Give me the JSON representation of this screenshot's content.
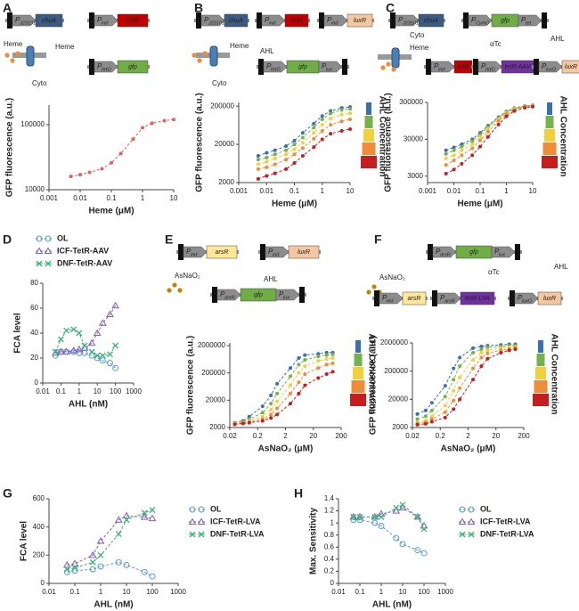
{
  "promoter_symbol": "P",
  "chart_data": [
    {
      "panel": "A",
      "type": "line",
      "x_label": "Heme (μM)",
      "y_label": "GFP fluorescence (a.u.)",
      "xscale": "log",
      "yscale": "log",
      "xlim": [
        0.001,
        10
      ],
      "xticks": [
        0.001,
        0.01,
        0.1,
        1,
        10
      ],
      "ylim": [
        10000,
        200000
      ],
      "yticks": [
        10000,
        100000
      ],
      "x": [
        0.005,
        0.01,
        0.02,
        0.05,
        0.1,
        0.2,
        0.5,
        1,
        2,
        5,
        10
      ],
      "series": [
        {
          "color": "#e0605e",
          "marker": "dot",
          "values": [
            16000,
            17000,
            18500,
            21000,
            26000,
            36000,
            60000,
            90000,
            105000,
            115000,
            120000
          ]
        }
      ],
      "diagram": {
        "parts": [
          {
            "promoter": "J23101",
            "gene": "chuA",
            "color": "#3d5a80"
          },
          {
            "promoter": "ind",
            "gene": "hrtR",
            "color": "#c00000"
          },
          {
            "promoter": "hrtO",
            "gene": "gfp",
            "color": "#70ad47"
          }
        ],
        "labels": [
          "Heme",
          "Cyto",
          "Heme"
        ]
      }
    },
    {
      "panel": "B",
      "type": "line",
      "x_label": "Heme (μM)",
      "y_label": "GFP fluorescence (a.u.)",
      "legend_title": "AHL Concentration",
      "xscale": "log",
      "yscale": "log",
      "xlim": [
        0.001,
        10
      ],
      "xticks": [
        0.001,
        0.01,
        0.1,
        1,
        10
      ],
      "ylim": [
        2000,
        250000
      ],
      "yticks": [
        2000,
        20000,
        200000
      ],
      "x": [
        0.005,
        0.01,
        0.02,
        0.05,
        0.1,
        0.2,
        0.5,
        1,
        2,
        5,
        10
      ],
      "series": [
        {
          "color": "#3a6fb0",
          "marker": "dot",
          "values": [
            10000,
            12000,
            14000,
            18000,
            25000,
            40000,
            70000,
            110000,
            150000,
            180000,
            190000
          ]
        },
        {
          "color": "#74b24c",
          "marker": "dot",
          "values": [
            8000,
            9000,
            11000,
            14000,
            20000,
            30000,
            55000,
            90000,
            130000,
            160000,
            170000
          ]
        },
        {
          "color": "#f2d03b",
          "marker": "dot",
          "values": [
            6000,
            7000,
            8500,
            11000,
            15000,
            22000,
            40000,
            65000,
            95000,
            120000,
            130000
          ]
        },
        {
          "color": "#ef8c3a",
          "marker": "dot",
          "values": [
            4500,
            5000,
            6000,
            8000,
            11000,
            16000,
            28000,
            45000,
            65000,
            80000,
            90000
          ]
        },
        {
          "color": "#c41e1e",
          "marker": "dot",
          "values": [
            2500,
            3000,
            3500,
            4500,
            6500,
            10000,
            17000,
            27000,
            38000,
            45000,
            50000
          ]
        }
      ],
      "diagram": {
        "parts": [
          {
            "promoter": "J23101",
            "gene": "chuA",
            "color": "#3d5a80"
          },
          {
            "promoter": "ind",
            "gene": "hrtR",
            "color": "#c00000"
          },
          {
            "promoter": "ind",
            "gene": "luxR",
            "color": "#f4c7a1"
          },
          {
            "promoter": "hrtO",
            "gene": "gfp",
            "color": "#70ad47",
            "end": "lux"
          }
        ],
        "labels": [
          "Heme",
          "Cyto",
          "AHL"
        ]
      }
    },
    {
      "panel": "C",
      "type": "line",
      "x_label": "Heme (μM)",
      "y_label": "GFP fluorescence (a.u.)",
      "legend_title": "AHL Concentration",
      "xscale": "log",
      "yscale": "log",
      "xlim": [
        0.001,
        10
      ],
      "xticks": [
        0.001,
        0.01,
        0.1,
        1,
        10
      ],
      "ylim": [
        2000,
        300000
      ],
      "yticks": [
        3000,
        30000,
        300000
      ],
      "x": [
        0.005,
        0.01,
        0.02,
        0.05,
        0.1,
        0.2,
        0.5,
        1,
        2,
        5,
        10
      ],
      "series": [
        {
          "color": "#3a6fb0",
          "marker": "dot",
          "values": [
            15000,
            18000,
            22000,
            30000,
            45000,
            70000,
            120000,
            170000,
            210000,
            240000,
            250000
          ]
        },
        {
          "color": "#74b24c",
          "marker": "dot",
          "values": [
            12000,
            15000,
            19000,
            27000,
            40000,
            65000,
            115000,
            165000,
            205000,
            235000,
            245000
          ]
        },
        {
          "color": "#f2d03b",
          "marker": "dot",
          "values": [
            9000,
            11000,
            15000,
            22000,
            35000,
            58000,
            105000,
            155000,
            200000,
            230000,
            240000
          ]
        },
        {
          "color": "#ef8c3a",
          "marker": "dot",
          "values": [
            6000,
            8000,
            11000,
            17000,
            28000,
            48000,
            95000,
            145000,
            190000,
            225000,
            235000
          ]
        },
        {
          "color": "#c41e1e",
          "marker": "dot",
          "values": [
            3500,
            4500,
            6500,
            11000,
            19000,
            35000,
            75000,
            125000,
            175000,
            215000,
            230000
          ]
        }
      ],
      "diagram": {
        "parts": [
          {
            "promoter": "J23101",
            "gene": "chuA",
            "color": "#3d5a80"
          },
          {
            "promoter": "CymO",
            "gene": "gfp",
            "color": "#70ad47",
            "end": "tet"
          },
          {
            "promoter": "ind",
            "gene": "hrtR",
            "color": "#c00000"
          },
          {
            "promoter": "hrtO",
            "gene": "tetR-AAV",
            "color": "#7030a0"
          },
          {
            "promoter": "luxO",
            "gene": "luxR",
            "color": "#f4c7a1"
          }
        ],
        "labels": [
          "Cyto",
          "Heme",
          "αTc",
          "AHL"
        ]
      }
    },
    {
      "panel": "D",
      "type": "line",
      "x_label": "AHL (nM)",
      "y_label": "FCA level",
      "legend": "top-left",
      "xscale": "log",
      "yscale": "linear",
      "xlim": [
        0.01,
        1000
      ],
      "xticks": [
        0.01,
        0.1,
        1,
        10,
        100,
        1000
      ],
      "ylim": [
        0,
        80
      ],
      "yticks": [
        0,
        20,
        40,
        60,
        80
      ],
      "x": [
        0.05,
        0.1,
        0.2,
        0.5,
        1,
        2,
        5,
        10,
        20,
        50,
        100
      ],
      "series": [
        {
          "name": "OL",
          "color": "#5b9bd5",
          "marker": "circle",
          "values": [
            22,
            25,
            25,
            25,
            24,
            24,
            22,
            20,
            18,
            16,
            12
          ]
        },
        {
          "name": "ICF-TetR-AAV",
          "color": "#7f5fbf",
          "marker": "triangle",
          "values": [
            24,
            25,
            25,
            26,
            27,
            28,
            32,
            40,
            48,
            55,
            62
          ]
        },
        {
          "name": "DNF-TetR-AAV",
          "color": "#3cb371",
          "marker": "x",
          "values": [
            25,
            35,
            42,
            43,
            40,
            30,
            25,
            22,
            22,
            23,
            30
          ]
        }
      ]
    },
    {
      "panel": "E",
      "type": "line",
      "x_label": "AsNaO₂ (μM)",
      "y_label": "GFP fluorescence (a.u.)",
      "legend_title": "AHL Concentration",
      "xscale": "log",
      "yscale": "log",
      "xlim": [
        0.02,
        200
      ],
      "xticks": [
        0.02,
        0.2,
        2,
        20,
        200
      ],
      "ylim": [
        2000,
        2500000
      ],
      "yticks": [
        2000,
        20000,
        200000,
        2000000
      ],
      "x": [
        0.03,
        0.06,
        0.1,
        0.3,
        0.6,
        1,
        3,
        6,
        10,
        30,
        60,
        100
      ],
      "series": [
        {
          "color": "#3a6fb0",
          "marker": "dot",
          "values": [
            3000,
            3500,
            5000,
            12000,
            30000,
            80000,
            300000,
            700000,
            900000,
            1000000,
            1100000,
            1100000
          ]
        },
        {
          "color": "#74b24c",
          "marker": "dot",
          "values": [
            3000,
            3300,
            4000,
            7000,
            15000,
            35000,
            150000,
            400000,
            600000,
            800000,
            900000,
            950000
          ]
        },
        {
          "color": "#f2d03b",
          "marker": "dot",
          "values": [
            2800,
            3000,
            3500,
            5000,
            9000,
            18000,
            70000,
            200000,
            350000,
            550000,
            650000,
            700000
          ]
        },
        {
          "color": "#ef8c3a",
          "marker": "dot",
          "values": [
            2700,
            2900,
            3200,
            4000,
            6000,
            10000,
            35000,
            90000,
            180000,
            300000,
            400000,
            450000
          ]
        },
        {
          "color": "#c41e1e",
          "marker": "dot",
          "values": [
            2600,
            2800,
            3000,
            3500,
            4500,
            6000,
            15000,
            35000,
            70000,
            130000,
            180000,
            220000
          ]
        }
      ],
      "diagram": {
        "parts": [
          {
            "promoter": "ind",
            "gene": "arsR",
            "color": "#ffe699"
          },
          {
            "promoter": "ind",
            "gene": "luxR",
            "color": "#f4c7a1"
          },
          {
            "promoter": "arsR",
            "gene": "gfp",
            "color": "#70ad47",
            "end": "lux"
          }
        ],
        "labels": [
          "AsNaO₂",
          "AHL"
        ]
      }
    },
    {
      "panel": "F",
      "type": "line",
      "x_label": "AsNaO₂ (μM)",
      "y_label": "GFP fluorescence (a.u.)",
      "legend_title": "AHL Concentration",
      "xscale": "log",
      "yscale": "log",
      "xlim": [
        0.02,
        200
      ],
      "xticks": [
        0.02,
        0.2,
        2,
        20,
        200
      ],
      "ylim": [
        2000,
        2000000
      ],
      "yticks": [
        2000,
        20000,
        200000,
        2000000
      ],
      "x": [
        0.03,
        0.06,
        0.1,
        0.3,
        0.6,
        1,
        3,
        6,
        10,
        30,
        60,
        100
      ],
      "series": [
        {
          "color": "#3a6fb0",
          "marker": "dot",
          "values": [
            6000,
            8000,
            15000,
            60000,
            250000,
            600000,
            1300000,
            1500000,
            1600000,
            1700000,
            1800000,
            1800000
          ]
        },
        {
          "color": "#74b24c",
          "marker": "dot",
          "values": [
            4000,
            5000,
            8000,
            25000,
            100000,
            300000,
            900000,
            1200000,
            1400000,
            1500000,
            1600000,
            1600000
          ]
        },
        {
          "color": "#f2d03b",
          "marker": "dot",
          "values": [
            3000,
            3500,
            5000,
            12000,
            40000,
            120000,
            500000,
            900000,
            1100000,
            1300000,
            1400000,
            1400000
          ]
        },
        {
          "color": "#ef8c3a",
          "marker": "dot",
          "values": [
            2800,
            3000,
            4000,
            7000,
            18000,
            50000,
            250000,
            600000,
            850000,
            1100000,
            1200000,
            1300000
          ]
        },
        {
          "color": "#c41e1e",
          "marker": "dot",
          "values": [
            2500,
            2700,
            3200,
            4500,
            9000,
            20000,
            100000,
            300000,
            550000,
            900000,
            1100000,
            1200000
          ]
        }
      ],
      "diagram": {
        "parts": [
          {
            "promoter": "arsR",
            "gene": "gfp",
            "color": "#70ad47",
            "end": "lux"
          },
          {
            "promoter": "ind",
            "gene": "arsR",
            "color": "#ffe699"
          },
          {
            "promoter": "arsR",
            "gene": "tetR-LVA",
            "color": "#7030a0"
          },
          {
            "promoter": "luxO",
            "gene": "luxR",
            "color": "#f4c7a1"
          }
        ],
        "labels": [
          "AsNaO₂",
          "αTc",
          "AHL"
        ]
      }
    },
    {
      "panel": "G",
      "type": "line",
      "x_label": "AHL (nM)",
      "y_label": "FCA level",
      "legend": "right",
      "xscale": "log",
      "yscale": "linear",
      "xlim": [
        0.01,
        1000
      ],
      "xticks": [
        0.01,
        0.1,
        1,
        10,
        100,
        1000
      ],
      "ylim": [
        0,
        600
      ],
      "yticks": [
        0,
        200,
        400,
        600
      ],
      "x": [
        0.05,
        0.1,
        0.5,
        1,
        5,
        10,
        50,
        100
      ],
      "series": [
        {
          "name": "OL",
          "color": "#5b9bd5",
          "marker": "circle",
          "values": [
            80,
            90,
            100,
            120,
            150,
            130,
            80,
            50
          ]
        },
        {
          "name": "ICF-TetR-LVA",
          "color": "#7f5fbf",
          "marker": "triangle",
          "values": [
            130,
            140,
            200,
            300,
            450,
            480,
            470,
            460
          ]
        },
        {
          "name": "DNF-TetR-LVA",
          "color": "#3cb371",
          "marker": "x",
          "values": [
            100,
            110,
            150,
            200,
            350,
            450,
            500,
            520
          ]
        }
      ]
    },
    {
      "panel": "H",
      "type": "line",
      "x_label": "AHL (nM)",
      "y_label": "Max. Sensitivity",
      "legend": "right",
      "xscale": "log",
      "yscale": "linear",
      "xlim": [
        0.01,
        1000
      ],
      "xticks": [
        0.01,
        0.1,
        1,
        10,
        100,
        1000
      ],
      "ylim": [
        0,
        1.4
      ],
      "yticks": [
        0,
        0.2,
        0.4,
        0.6,
        0.8,
        1,
        1.2,
        1.4
      ],
      "x": [
        0.05,
        0.1,
        0.5,
        1,
        5,
        10,
        50,
        100
      ],
      "series": [
        {
          "name": "OL",
          "color": "#5b9bd5",
          "marker": "circle",
          "values": [
            1.05,
            1.05,
            1,
            0.95,
            0.75,
            0.65,
            0.55,
            0.5
          ]
        },
        {
          "name": "ICF-TetR-LVA",
          "color": "#7f5fbf",
          "marker": "triangle",
          "values": [
            1.1,
            1.1,
            1.1,
            1.15,
            1.2,
            1.25,
            1.1,
            0.95
          ]
        },
        {
          "name": "DNF-TetR-LVA",
          "color": "#3cb371",
          "marker": "x",
          "values": [
            1.1,
            1.1,
            1.1,
            1.1,
            1.25,
            1.3,
            1.1,
            0.9
          ]
        }
      ]
    }
  ]
}
